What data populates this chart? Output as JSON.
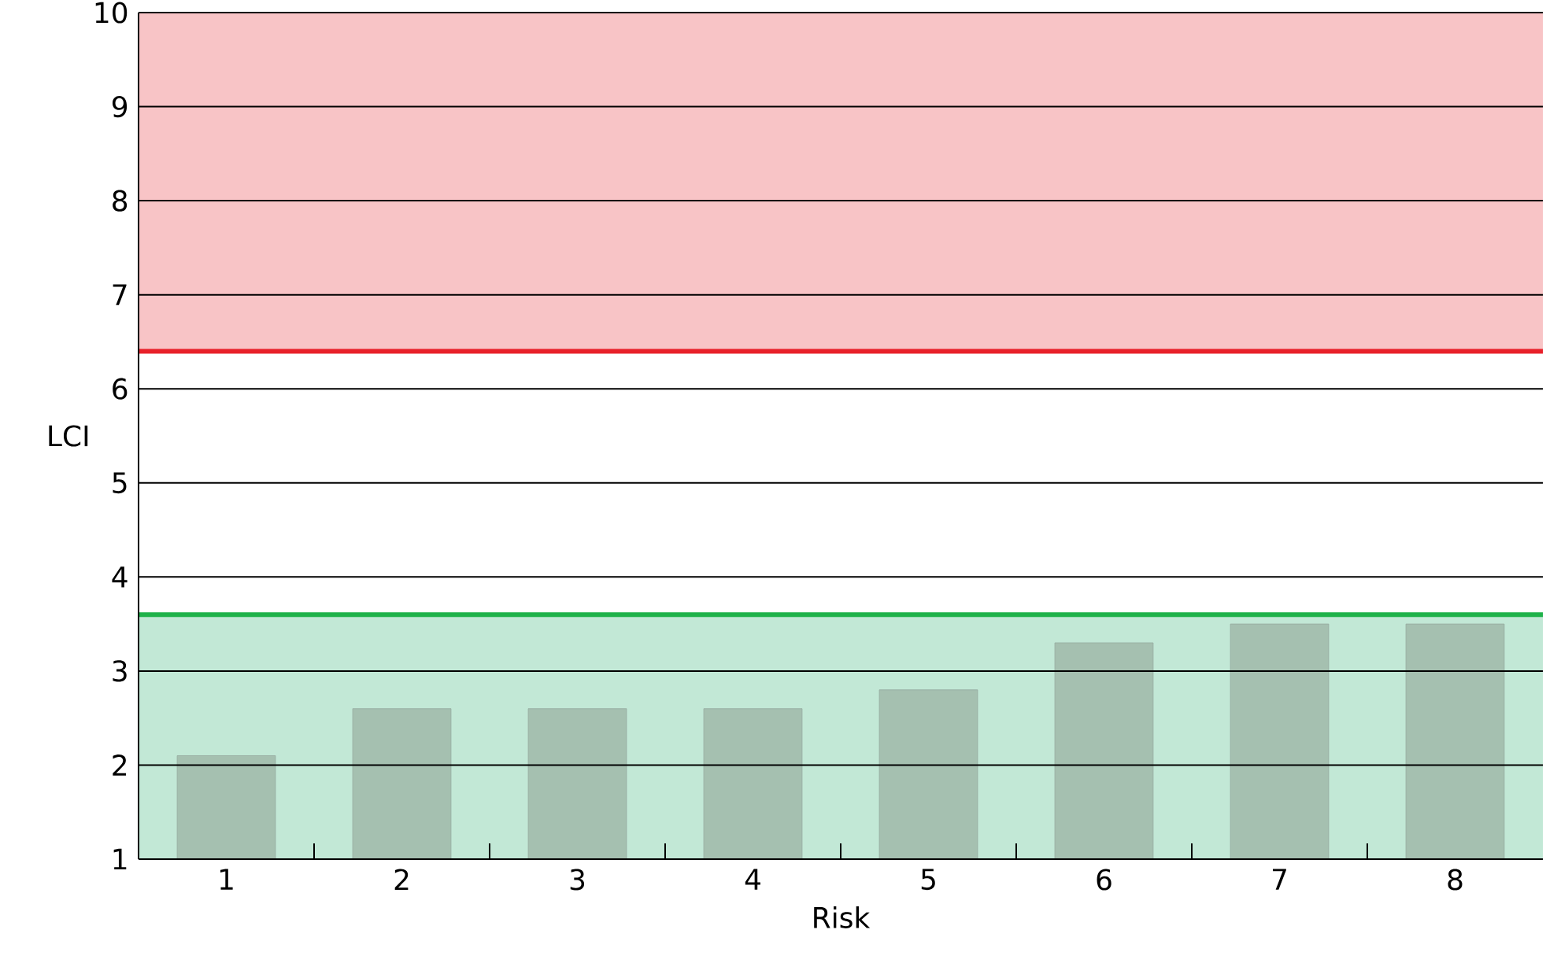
{
  "chart_data": {
    "type": "bar",
    "xlabel": "Risk",
    "ylabel": "LCI",
    "categories": [
      "1",
      "2",
      "3",
      "4",
      "5",
      "6",
      "7",
      "8"
    ],
    "values": [
      2.1,
      2.6,
      2.6,
      2.6,
      2.8,
      3.3,
      3.5,
      3.5
    ],
    "color": "#a5c0b0",
    "ylim": [
      1,
      10
    ],
    "yticks": [
      1,
      2,
      3,
      4,
      5,
      6,
      7,
      8,
      9,
      10
    ],
    "grid": "y",
    "bands": [
      {
        "axis": "y",
        "from": 1,
        "to": 3.6,
        "color": "#c2e8d6"
      },
      {
        "axis": "y",
        "from": 6.4,
        "to": 10,
        "color": "#f8c4c6"
      }
    ],
    "ref_lines": [
      {
        "axis": "y",
        "value": 3.6,
        "color": "#1fb24a"
      },
      {
        "axis": "y",
        "value": 6.4,
        "color": "#e8202a"
      }
    ]
  }
}
